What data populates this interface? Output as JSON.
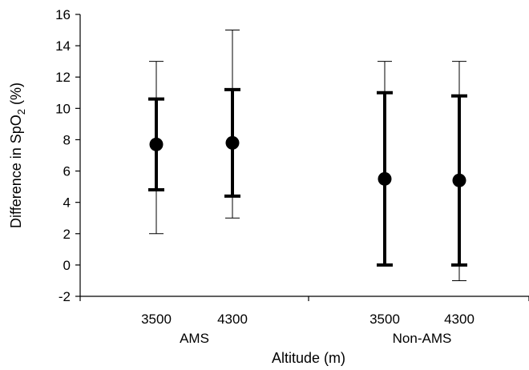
{
  "chart_data": {
    "type": "scatter",
    "title": "",
    "xlabel": "Altitude (m)",
    "ylabel": {
      "main": "Difference in SpO",
      "sub": "2",
      "end": " (%)"
    },
    "ylim": [
      -2,
      16
    ],
    "yticks": [
      -2,
      0,
      2,
      4,
      6,
      8,
      10,
      12,
      14,
      16
    ],
    "groups": [
      {
        "label": "AMS",
        "categories": [
          "3500",
          "4300"
        ]
      },
      {
        "label": "Non-AMS",
        "categories": [
          "3500",
          "4300"
        ]
      }
    ],
    "points": [
      {
        "group": "AMS",
        "altitude": "3500",
        "value": 7.7,
        "box": [
          4.8,
          10.6
        ],
        "range": [
          2,
          13
        ]
      },
      {
        "group": "AMS",
        "altitude": "4300",
        "value": 7.8,
        "box": [
          4.4,
          11.2
        ],
        "range": [
          3,
          15
        ]
      },
      {
        "group": "Non-AMS",
        "altitude": "3500",
        "value": 5.5,
        "box": [
          0,
          11
        ],
        "range": [
          0,
          13
        ]
      },
      {
        "group": "Non-AMS",
        "altitude": "4300",
        "value": 5.4,
        "box": [
          0,
          10.8
        ],
        "range": [
          -1,
          13
        ]
      }
    ],
    "grid": false,
    "legend": "none"
  }
}
